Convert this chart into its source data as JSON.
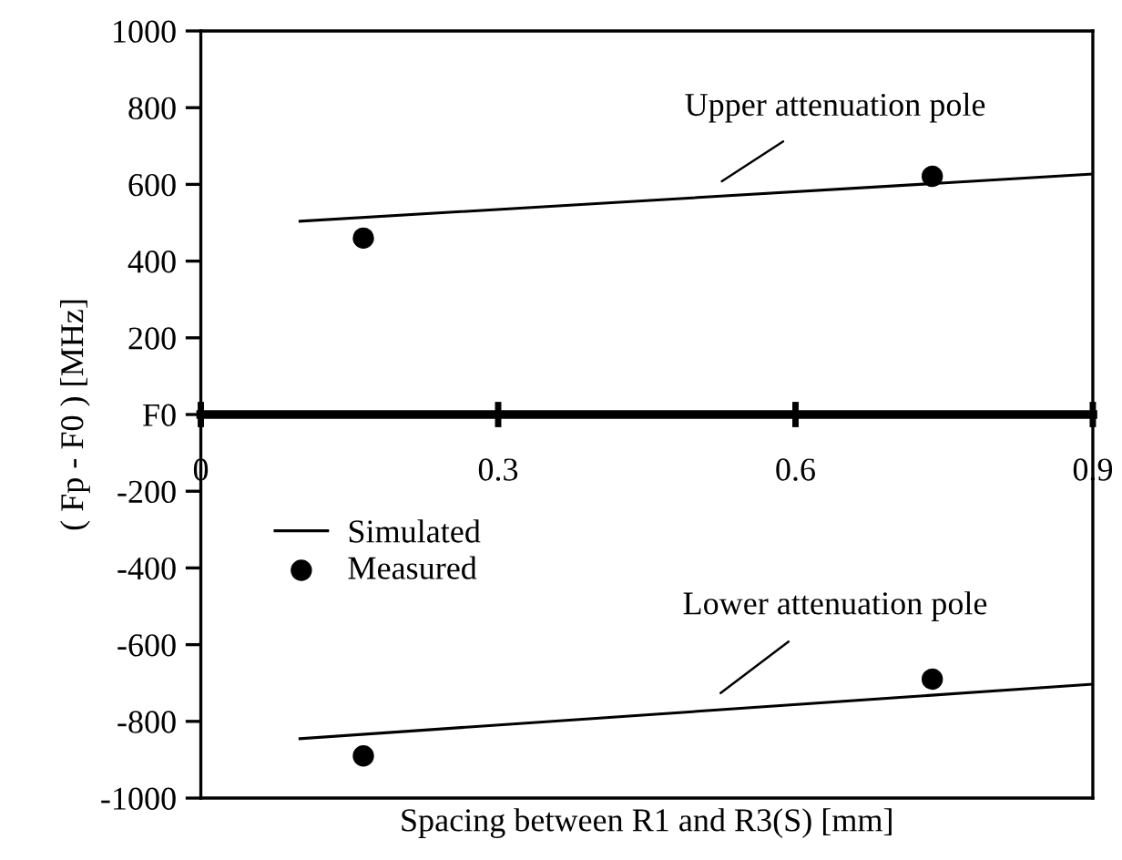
{
  "chart_data": {
    "type": "scatter",
    "xlabel": "Spacing between R1 and R3(S) [mm]",
    "ylabel": "( Fp - F0 ) [MHz]",
    "xlim": [
      0,
      0.9
    ],
    "xticks": [
      0,
      0.3,
      0.6,
      0.9
    ],
    "ylim": [
      -1000,
      1000
    ],
    "yticks": [
      -1000,
      -800,
      -600,
      -400,
      -200,
      {
        "value": 0,
        "label": "F0"
      },
      200,
      400,
      600,
      800,
      1000
    ],
    "series": [
      {
        "name": "Simulated",
        "type": "line",
        "marker": "none",
        "color": "#000000",
        "x": [
          0.1,
          0.9
        ],
        "values": [
          504,
          627
        ]
      },
      {
        "type": "line",
        "marker": "none",
        "color": "#000000",
        "x": [
          0.1,
          0.9
        ],
        "values": [
          -845,
          -703
        ]
      },
      {
        "name": "Measured",
        "marker": "circle",
        "color": "#000000",
        "x": [
          0.164,
          0.738
        ],
        "values": [
          460,
          621
        ]
      },
      {
        "marker": "circle",
        "color": "#000000",
        "x": [
          0.164,
          0.738
        ],
        "values": [
          -890,
          -690
        ]
      }
    ],
    "annotations": [
      {
        "text": "Upper attenuation pole",
        "x": 0.5,
        "y": 565
      },
      {
        "text": "Lower attenuation pole",
        "x": 0.5,
        "y": -774
      }
    ],
    "legend": "left",
    "grid": false,
    "line_style": "solid"
  }
}
